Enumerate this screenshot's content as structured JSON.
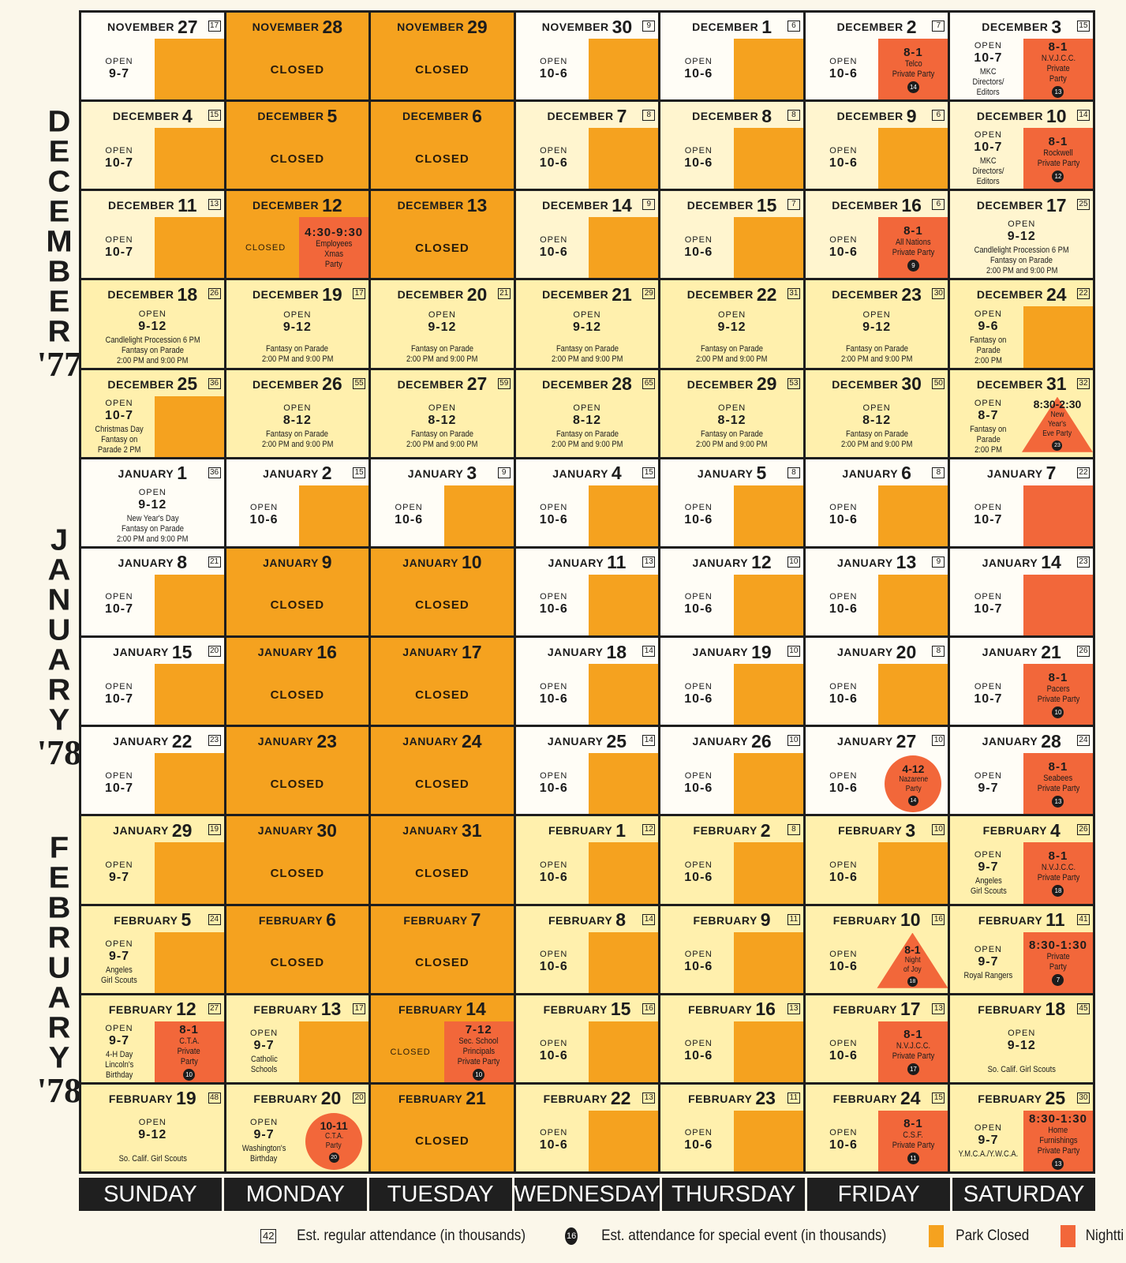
{
  "side_labels": [
    {
      "letters": [
        "D",
        "E",
        "C",
        "E",
        "M",
        "B",
        "E",
        "R"
      ],
      "year": "'77",
      "top": 135
    },
    {
      "letters": [
        "J",
        "A",
        "N",
        "U",
        "A",
        "R",
        "Y"
      ],
      "year": "'78",
      "top": 665
    },
    {
      "letters": [
        "F",
        "E",
        "B",
        "R",
        "U",
        "A",
        "R",
        "Y"
      ],
      "year": "'78",
      "top": 1055
    }
  ],
  "colors": {
    "park_closed": "#f5a21f",
    "nighttime_event": "#f2673a"
  },
  "weekdays": [
    "SUNDAY",
    "MONDAY",
    "TUESDAY",
    "WEDNESDAY",
    "THURSDAY",
    "FRIDAY",
    "SATURDAY"
  ],
  "legend": {
    "box_sample": "42",
    "box_label": "Est. regular attendance (in thousands)",
    "circle_sample": "16",
    "circle_label": "Est. attendance for special event (in thousands)",
    "closed_label": "Park Closed",
    "night_label": "Nightti"
  },
  "days": [
    {
      "m": "NOVEMBER",
      "d": "27",
      "a": "17",
      "bg": "white",
      "t": "open",
      "h": "9-7",
      "block": "closed"
    },
    {
      "m": "NOVEMBER",
      "d": "28",
      "t": "closed"
    },
    {
      "m": "NOVEMBER",
      "d": "29",
      "t": "closed"
    },
    {
      "m": "NOVEMBER",
      "d": "30",
      "a": "9",
      "bg": "white",
      "t": "open",
      "h": "10-6",
      "block": "closed"
    },
    {
      "m": "DECEMBER",
      "d": "1",
      "a": "6",
      "bg": "white",
      "t": "open",
      "h": "10-6",
      "block": "closed"
    },
    {
      "m": "DECEMBER",
      "d": "2",
      "a": "7",
      "bg": "white",
      "t": "open",
      "h": "10-6",
      "event": {
        "shape": "rect",
        "h": "8-1",
        "n": [
          "Telco",
          "Private Party"
        ],
        "a": "14"
      }
    },
    {
      "m": "DECEMBER",
      "d": "3",
      "a": "15",
      "bg": "white",
      "t": "open",
      "h": "10-7",
      "notes": [
        "MKC",
        "Directors/",
        "Editors"
      ],
      "event": {
        "shape": "rect",
        "h": "8-1",
        "n": [
          "N.V.J.C.C.",
          "Private",
          "Party"
        ],
        "a": "13"
      }
    },
    {
      "m": "DECEMBER",
      "d": "4",
      "a": "15",
      "t": "open",
      "h": "10-7",
      "block": "closed"
    },
    {
      "m": "DECEMBER",
      "d": "5",
      "t": "closed"
    },
    {
      "m": "DECEMBER",
      "d": "6",
      "t": "closed"
    },
    {
      "m": "DECEMBER",
      "d": "7",
      "a": "8",
      "t": "open",
      "h": "10-6",
      "block": "closed"
    },
    {
      "m": "DECEMBER",
      "d": "8",
      "a": "8",
      "t": "open",
      "h": "10-6",
      "block": "closed"
    },
    {
      "m": "DECEMBER",
      "d": "9",
      "a": "6",
      "t": "open",
      "h": "10-6",
      "block": "closed"
    },
    {
      "m": "DECEMBER",
      "d": "10",
      "a": "14",
      "t": "open",
      "h": "10-7",
      "notes": [
        "MKC",
        "Directors/",
        "Editors"
      ],
      "event": {
        "shape": "rect",
        "h": "8-1",
        "n": [
          "Rockwell",
          "Private Party"
        ],
        "a": "12"
      }
    },
    {
      "m": "DECEMBER",
      "d": "11",
      "a": "13",
      "t": "open",
      "h": "10-7",
      "block": "closed"
    },
    {
      "m": "DECEMBER",
      "d": "12",
      "t": "closed-event",
      "event": {
        "shape": "rect",
        "h": "4:30-9:30",
        "n": [
          "Employees",
          "Xmas",
          "Party"
        ]
      }
    },
    {
      "m": "DECEMBER",
      "d": "13",
      "t": "closed"
    },
    {
      "m": "DECEMBER",
      "d": "14",
      "a": "9",
      "t": "open",
      "h": "10-6",
      "block": "closed"
    },
    {
      "m": "DECEMBER",
      "d": "15",
      "a": "7",
      "t": "open",
      "h": "10-6",
      "block": "closed"
    },
    {
      "m": "DECEMBER",
      "d": "16",
      "a": "6",
      "t": "open",
      "h": "10-6",
      "event": {
        "shape": "rect",
        "h": "8-1",
        "n": [
          "All Nations",
          "Private Party"
        ],
        "a": "9"
      }
    },
    {
      "m": "DECEMBER",
      "d": "17",
      "a": "25",
      "t": "open-full",
      "h": "9-12",
      "notes": [
        "Candlelight Procession 6 PM",
        "Fantasy on Parade",
        "2:00 PM and 9:00 PM"
      ]
    },
    {
      "m": "DECEMBER",
      "d": "18",
      "a": "26",
      "bg": "yellow",
      "t": "open-full",
      "h": "9-12",
      "notes": [
        "Candlelight Procession 6 PM",
        "Fantasy on Parade",
        "2:00 PM and 9:00 PM"
      ]
    },
    {
      "m": "DECEMBER",
      "d": "19",
      "a": "17",
      "bg": "yellow",
      "t": "open-full",
      "h": "9-12",
      "notes": [
        "",
        "Fantasy on Parade",
        "2:00 PM and 9:00 PM"
      ]
    },
    {
      "m": "DECEMBER",
      "d": "20",
      "a": "21",
      "bg": "yellow",
      "t": "open-full",
      "h": "9-12",
      "notes": [
        "",
        "Fantasy on Parade",
        "2:00 PM and 9:00 PM"
      ]
    },
    {
      "m": "DECEMBER",
      "d": "21",
      "a": "29",
      "bg": "yellow",
      "t": "open-full",
      "h": "9-12",
      "notes": [
        "",
        "Fantasy on Parade",
        "2:00 PM and 9:00 PM"
      ]
    },
    {
      "m": "DECEMBER",
      "d": "22",
      "a": "31",
      "bg": "yellow",
      "t": "open-full",
      "h": "9-12",
      "notes": [
        "",
        "Fantasy on Parade",
        "2:00 PM and 9:00 PM"
      ]
    },
    {
      "m": "DECEMBER",
      "d": "23",
      "a": "30",
      "bg": "yellow",
      "t": "open-full",
      "h": "9-12",
      "notes": [
        "",
        "Fantasy on Parade",
        "2:00 PM and 9:00 PM"
      ]
    },
    {
      "m": "DECEMBER",
      "d": "24",
      "a": "22",
      "bg": "yellow",
      "t": "open",
      "h": "9-6",
      "notes": [
        "Fantasy on",
        "Parade",
        "2:00 PM"
      ],
      "block": "closed"
    },
    {
      "m": "DECEMBER",
      "d": "25",
      "a": "36",
      "bg": "yellow",
      "t": "open",
      "h": "10-7",
      "notes": [
        "Christmas Day",
        "Fantasy on",
        "Parade 2 PM"
      ],
      "block": "closed"
    },
    {
      "m": "DECEMBER",
      "d": "26",
      "a": "55",
      "bg": "yellow",
      "t": "open-full",
      "h": "8-12",
      "notes": [
        "Fantasy on Parade",
        "2:00 PM and 9:00 PM"
      ]
    },
    {
      "m": "DECEMBER",
      "d": "27",
      "a": "59",
      "bg": "yellow",
      "t": "open-full",
      "h": "8-12",
      "notes": [
        "Fantasy on Parade",
        "2:00 PM and 9:00 PM"
      ]
    },
    {
      "m": "DECEMBER",
      "d": "28",
      "a": "65",
      "bg": "yellow",
      "t": "open-full",
      "h": "8-12",
      "notes": [
        "Fantasy on Parade",
        "2:00 PM and 9:00 PM"
      ]
    },
    {
      "m": "DECEMBER",
      "d": "29",
      "a": "53",
      "bg": "yellow",
      "t": "open-full",
      "h": "8-12",
      "notes": [
        "Fantasy on Parade",
        "2:00 PM and 9:00 PM"
      ]
    },
    {
      "m": "DECEMBER",
      "d": "30",
      "a": "50",
      "bg": "yellow",
      "t": "open-full",
      "h": "8-12",
      "notes": [
        "Fantasy on Parade",
        "2:00 PM and 9:00 PM"
      ]
    },
    {
      "m": "DECEMBER",
      "d": "31",
      "a": "32",
      "bg": "yellow",
      "t": "open",
      "h": "8-7",
      "notes": [
        "Fantasy on",
        "Parade",
        "2:00 PM"
      ],
      "event": {
        "shape": "triangle",
        "h": "8:30-2:30",
        "n": [
          "New",
          "Year's",
          "Eve Party"
        ],
        "a": "23"
      }
    },
    {
      "m": "JANUARY",
      "d": "1",
      "a": "36",
      "bg": "white",
      "t": "open-full",
      "h": "9-12",
      "notes": [
        "New Year's Day",
        "Fantasy on Parade",
        "2:00 PM and 9:00 PM"
      ]
    },
    {
      "m": "JANUARY",
      "d": "2",
      "a": "15",
      "bg": "white",
      "t": "open",
      "h": "10-6",
      "block": "closed"
    },
    {
      "m": "JANUARY",
      "d": "3",
      "a": "9",
      "bg": "white",
      "t": "open",
      "h": "10-6",
      "block": "closed"
    },
    {
      "m": "JANUARY",
      "d": "4",
      "a": "15",
      "bg": "white",
      "t": "open",
      "h": "10-6",
      "block": "closed"
    },
    {
      "m": "JANUARY",
      "d": "5",
      "a": "8",
      "bg": "white",
      "t": "open",
      "h": "10-6",
      "block": "closed"
    },
    {
      "m": "JANUARY",
      "d": "6",
      "a": "8",
      "bg": "white",
      "t": "open",
      "h": "10-6",
      "block": "closed"
    },
    {
      "m": "JANUARY",
      "d": "7",
      "a": "22",
      "bg": "white",
      "t": "open",
      "h": "10-7",
      "block": "night"
    },
    {
      "m": "JANUARY",
      "d": "8",
      "a": "21",
      "bg": "white",
      "t": "open",
      "h": "10-7",
      "block": "closed"
    },
    {
      "m": "JANUARY",
      "d": "9",
      "t": "closed"
    },
    {
      "m": "JANUARY",
      "d": "10",
      "t": "closed"
    },
    {
      "m": "JANUARY",
      "d": "11",
      "a": "13",
      "bg": "white",
      "t": "open",
      "h": "10-6",
      "block": "closed"
    },
    {
      "m": "JANUARY",
      "d": "12",
      "a": "10",
      "bg": "white",
      "t": "open",
      "h": "10-6",
      "block": "closed"
    },
    {
      "m": "JANUARY",
      "d": "13",
      "a": "9",
      "bg": "white",
      "t": "open",
      "h": "10-6",
      "block": "closed"
    },
    {
      "m": "JANUARY",
      "d": "14",
      "a": "23",
      "bg": "white",
      "t": "open",
      "h": "10-7",
      "block": "night"
    },
    {
      "m": "JANUARY",
      "d": "15",
      "a": "20",
      "bg": "white",
      "t": "open",
      "h": "10-7",
      "block": "closed"
    },
    {
      "m": "JANUARY",
      "d": "16",
      "t": "closed"
    },
    {
      "m": "JANUARY",
      "d": "17",
      "t": "closed"
    },
    {
      "m": "JANUARY",
      "d": "18",
      "a": "14",
      "bg": "white",
      "t": "open",
      "h": "10-6",
      "block": "closed"
    },
    {
      "m": "JANUARY",
      "d": "19",
      "a": "10",
      "bg": "white",
      "t": "open",
      "h": "10-6",
      "block": "closed"
    },
    {
      "m": "JANUARY",
      "d": "20",
      "a": "8",
      "bg": "white",
      "t": "open",
      "h": "10-6",
      "block": "closed"
    },
    {
      "m": "JANUARY",
      "d": "21",
      "a": "26",
      "bg": "white",
      "t": "open",
      "h": "10-7",
      "event": {
        "shape": "rect",
        "h": "8-1",
        "n": [
          "Pacers",
          "Private Party"
        ],
        "a": "10"
      }
    },
    {
      "m": "JANUARY",
      "d": "22",
      "a": "23",
      "bg": "white",
      "t": "open",
      "h": "10-7",
      "block": "closed"
    },
    {
      "m": "JANUARY",
      "d": "23",
      "t": "closed"
    },
    {
      "m": "JANUARY",
      "d": "24",
      "t": "closed"
    },
    {
      "m": "JANUARY",
      "d": "25",
      "a": "14",
      "bg": "white",
      "t": "open",
      "h": "10-6",
      "block": "closed"
    },
    {
      "m": "JANUARY",
      "d": "26",
      "a": "10",
      "bg": "white",
      "t": "open",
      "h": "10-6",
      "block": "closed"
    },
    {
      "m": "JANUARY",
      "d": "27",
      "a": "10",
      "bg": "white",
      "t": "open",
      "h": "10-6",
      "event": {
        "shape": "circle",
        "h": "4-12",
        "n": [
          "Nazarene",
          "Party"
        ],
        "a": "14"
      }
    },
    {
      "m": "JANUARY",
      "d": "28",
      "a": "24",
      "bg": "white",
      "t": "open",
      "h": "9-7",
      "event": {
        "shape": "rect",
        "h": "8-1",
        "n": [
          "Seabees",
          "Private Party"
        ],
        "a": "13"
      }
    },
    {
      "m": "JANUARY",
      "d": "29",
      "a": "19",
      "bg": "yellow",
      "t": "open",
      "h": "9-7",
      "block": "closed"
    },
    {
      "m": "JANUARY",
      "d": "30",
      "t": "closed"
    },
    {
      "m": "JANUARY",
      "d": "31",
      "t": "closed"
    },
    {
      "m": "FEBRUARY",
      "d": "1",
      "a": "12",
      "bg": "yellow",
      "t": "open",
      "h": "10-6",
      "block": "closed"
    },
    {
      "m": "FEBRUARY",
      "d": "2",
      "a": "8",
      "bg": "yellow",
      "t": "open",
      "h": "10-6",
      "block": "closed"
    },
    {
      "m": "FEBRUARY",
      "d": "3",
      "a": "10",
      "bg": "yellow",
      "t": "open",
      "h": "10-6",
      "block": "closed"
    },
    {
      "m": "FEBRUARY",
      "d": "4",
      "a": "26",
      "bg": "yellow",
      "t": "open",
      "h": "9-7",
      "notes": [
        "Angeles",
        "Girl Scouts"
      ],
      "event": {
        "shape": "rect",
        "h": "8-1",
        "n": [
          "N.V.J.C.C.",
          "Private Party"
        ],
        "a": "18"
      }
    },
    {
      "m": "FEBRUARY",
      "d": "5",
      "a": "24",
      "bg": "yellow",
      "t": "open",
      "h": "9-7",
      "notes": [
        "Angeles",
        "Girl Scouts"
      ],
      "block": "closed"
    },
    {
      "m": "FEBRUARY",
      "d": "6",
      "t": "closed"
    },
    {
      "m": "FEBRUARY",
      "d": "7",
      "t": "closed"
    },
    {
      "m": "FEBRUARY",
      "d": "8",
      "a": "14",
      "bg": "yellow",
      "t": "open",
      "h": "10-6",
      "block": "closed"
    },
    {
      "m": "FEBRUARY",
      "d": "9",
      "a": "11",
      "bg": "yellow",
      "t": "open",
      "h": "10-6",
      "block": "closed"
    },
    {
      "m": "FEBRUARY",
      "d": "10",
      "a": "16",
      "bg": "yellow",
      "t": "open",
      "h": "10-6",
      "event": {
        "shape": "triangle",
        "h": "8-1",
        "n": [
          "Night",
          "of Joy"
        ],
        "a": "18"
      }
    },
    {
      "m": "FEBRUARY",
      "d": "11",
      "a": "41",
      "bg": "yellow",
      "t": "open",
      "h": "9-7",
      "notes": [
        "Royal Rangers"
      ],
      "event": {
        "shape": "rect",
        "h": "8:30-1:30",
        "n": [
          "Private",
          "Party"
        ],
        "a": "7"
      }
    },
    {
      "m": "FEBRUARY",
      "d": "12",
      "a": "27",
      "bg": "yellow",
      "t": "open",
      "h": "9-7",
      "notes": [
        "4-H Day",
        "Lincoln's",
        "Birthday"
      ],
      "event": {
        "shape": "rect",
        "h": "8-1",
        "n": [
          "C.T.A.",
          "Private",
          "Party"
        ],
        "a": "10"
      }
    },
    {
      "m": "FEBRUARY",
      "d": "13",
      "a": "17",
      "bg": "yellow",
      "t": "open",
      "h": "9-7",
      "notes": [
        "Catholic",
        "Schools"
      ],
      "block": "closed"
    },
    {
      "m": "FEBRUARY",
      "d": "14",
      "t": "closed-event",
      "event": {
        "shape": "rect",
        "h": "7-12",
        "n": [
          "Sec. School",
          "Principals",
          "Private Party"
        ],
        "a": "10"
      }
    },
    {
      "m": "FEBRUARY",
      "d": "15",
      "a": "16",
      "bg": "yellow",
      "t": "open",
      "h": "10-6",
      "block": "closed"
    },
    {
      "m": "FEBRUARY",
      "d": "16",
      "a": "13",
      "bg": "yellow",
      "t": "open",
      "h": "10-6",
      "block": "closed"
    },
    {
      "m": "FEBRUARY",
      "d": "17",
      "a": "13",
      "bg": "yellow",
      "t": "open",
      "h": "10-6",
      "event": {
        "shape": "rect",
        "h": "8-1",
        "n": [
          "N.V.J.C.C.",
          "Private Party"
        ],
        "a": "17"
      }
    },
    {
      "m": "FEBRUARY",
      "d": "18",
      "a": "45",
      "bg": "yellow",
      "t": "open-full",
      "h": "9-12",
      "notes": [
        "",
        "So. Calif. Girl Scouts"
      ]
    },
    {
      "m": "FEBRUARY",
      "d": "19",
      "a": "48",
      "bg": "yellow",
      "t": "open-full",
      "h": "9-12",
      "notes": [
        "",
        "So. Calif. Girl Scouts"
      ]
    },
    {
      "m": "FEBRUARY",
      "d": "20",
      "a": "20",
      "bg": "yellow",
      "t": "open",
      "h": "9-7",
      "notes": [
        "Washington's",
        "Birthday"
      ],
      "event": {
        "shape": "circle",
        "h": "10-11",
        "n": [
          "C.T.A.",
          "Party"
        ],
        "a": "20"
      }
    },
    {
      "m": "FEBRUARY",
      "d": "21",
      "t": "closed"
    },
    {
      "m": "FEBRUARY",
      "d": "22",
      "a": "13",
      "bg": "yellow",
      "t": "open",
      "h": "10-6",
      "block": "closed"
    },
    {
      "m": "FEBRUARY",
      "d": "23",
      "a": "11",
      "bg": "yellow",
      "t": "open",
      "h": "10-6",
      "block": "closed"
    },
    {
      "m": "FEBRUARY",
      "d": "24",
      "a": "15",
      "bg": "yellow",
      "t": "open",
      "h": "10-6",
      "event": {
        "shape": "rect",
        "h": "8-1",
        "n": [
          "C.S.F.",
          "Private Party"
        ],
        "a": "11"
      }
    },
    {
      "m": "FEBRUARY",
      "d": "25",
      "a": "30",
      "bg": "yellow",
      "t": "open",
      "h": "9-7",
      "notes": [
        "Y.M.C.A./Y.W.C.A."
      ],
      "event": {
        "shape": "rect",
        "h": "8:30-1:30",
        "n": [
          "Home",
          "Furnishings",
          "Private Party"
        ],
        "a": "13"
      }
    }
  ]
}
